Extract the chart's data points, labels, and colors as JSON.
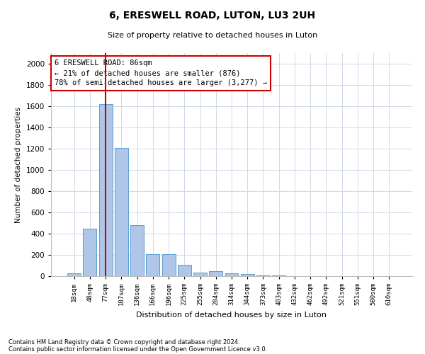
{
  "title1": "6, ERESWELL ROAD, LUTON, LU3 2UH",
  "title2": "Size of property relative to detached houses in Luton",
  "xlabel": "Distribution of detached houses by size in Luton",
  "ylabel": "Number of detached properties",
  "footnote1": "Contains HM Land Registry data © Crown copyright and database right 2024.",
  "footnote2": "Contains public sector information licensed under the Open Government Licence v3.0.",
  "bar_labels": [
    "18sqm",
    "48sqm",
    "77sqm",
    "107sqm",
    "136sqm",
    "166sqm",
    "196sqm",
    "225sqm",
    "255sqm",
    "284sqm",
    "314sqm",
    "344sqm",
    "373sqm",
    "403sqm",
    "432sqm",
    "462sqm",
    "492sqm",
    "521sqm",
    "551sqm",
    "580sqm",
    "610sqm"
  ],
  "bar_values": [
    25,
    450,
    1620,
    1210,
    480,
    210,
    210,
    110,
    35,
    50,
    25,
    20,
    10,
    5,
    3,
    2,
    1,
    1,
    1,
    0,
    0
  ],
  "bar_color": "#aec6e8",
  "bar_edgecolor": "#5a9fd4",
  "vline_x_index": 2,
  "vline_color": "#cc0000",
  "annotation_text": "6 ERESWELL ROAD: 86sqm\n← 21% of detached houses are smaller (876)\n78% of semi-detached houses are larger (3,277) →",
  "annotation_box_color": "#ffffff",
  "annotation_box_edgecolor": "#cc0000",
  "ylim": [
    0,
    2100
  ],
  "yticks": [
    0,
    200,
    400,
    600,
    800,
    1000,
    1200,
    1400,
    1600,
    1800,
    2000
  ],
  "background_color": "#ffffff",
  "grid_color": "#d0d8e8"
}
